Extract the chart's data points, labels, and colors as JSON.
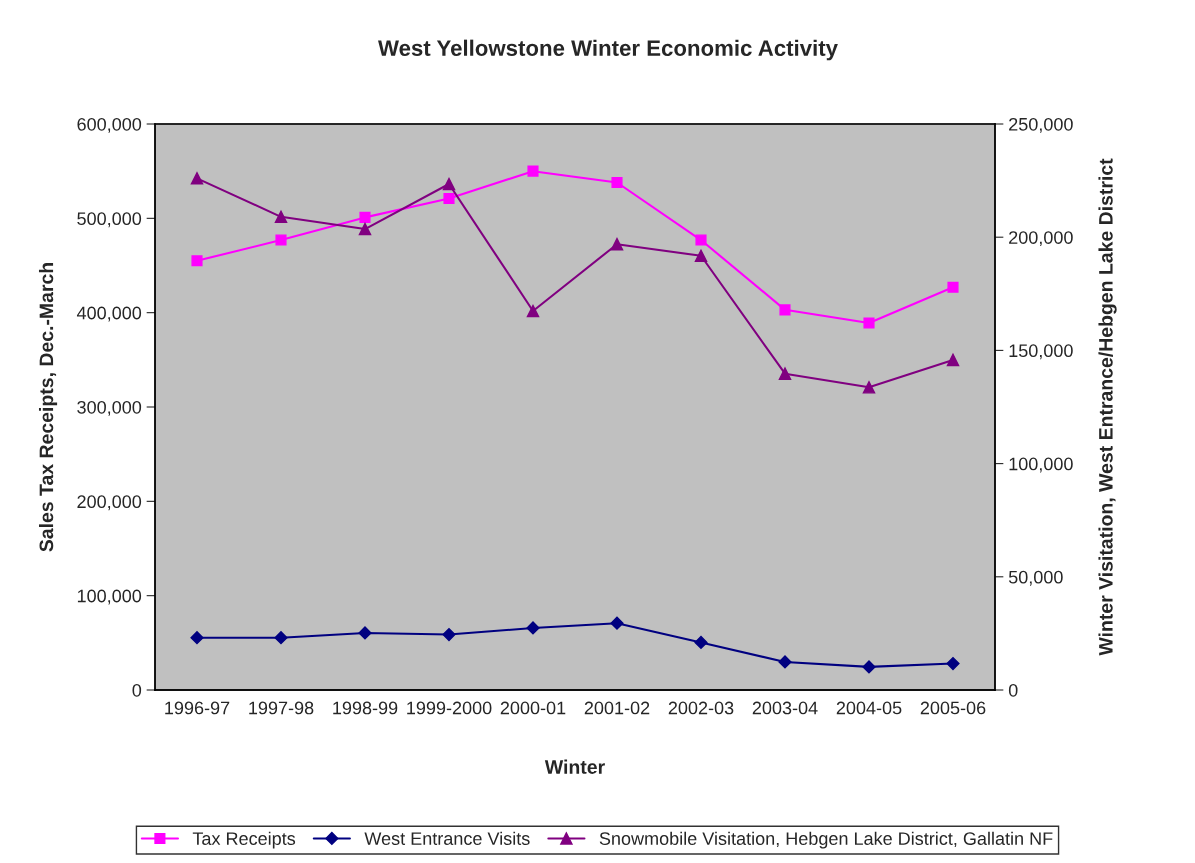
{
  "chart_data": {
    "type": "line",
    "title": "West Yellowstone Winter Economic Activity",
    "xlabel": "Winter",
    "ylabel": "Sales Tax Receipts, Dec.-March",
    "y2label": "Winter Visitation, West Entrance/Hebgen Lake District",
    "categories": [
      "1996-97",
      "1997-98",
      "1998-99",
      "1999-2000",
      "2000-01",
      "2001-02",
      "2002-03",
      "2003-04",
      "2004-05",
      "2005-06"
    ],
    "series": [
      {
        "name": "Tax Receipts",
        "color": "#ff00ff",
        "marker": "square",
        "values": [
          455000,
          477000,
          501000,
          521000,
          550000,
          538000,
          477000,
          403000,
          389000,
          427000
        ]
      },
      {
        "name": "West Entrance Visits",
        "color": "#000080",
        "marker": "diamond",
        "axis": "y2",
        "values": [
          23100,
          23100,
          25200,
          24500,
          27400,
          29500,
          21000,
          12400,
          10200,
          11700
        ]
      },
      {
        "name": "Snowmobile Visitation, Hebgen Lake District, Gallatin NF",
        "color": "#800080",
        "marker": "triangle",
        "axis": "y2",
        "values": [
          226000,
          209000,
          203600,
          223500,
          167400,
          196900,
          191800,
          139700,
          133700,
          145800
        ]
      }
    ],
    "ylim": [
      0,
      600000
    ],
    "yticks": [
      {
        "value": 0,
        "label": "0"
      },
      {
        "value": 100000,
        "label": "100,000"
      },
      {
        "value": 200000,
        "label": "200,000"
      },
      {
        "value": 300000,
        "label": "300,000"
      },
      {
        "value": 400000,
        "label": "400,000"
      },
      {
        "value": 500000,
        "label": "500,000"
      },
      {
        "value": 600000,
        "label": "600,000"
      }
    ],
    "y2lim": [
      0,
      250000
    ],
    "y2ticks": [
      {
        "value": 0,
        "label": "0"
      },
      {
        "value": 50000,
        "label": "50,000"
      },
      {
        "value": 100000,
        "label": "100,000"
      },
      {
        "value": 150000,
        "label": "150,000"
      },
      {
        "value": 200000,
        "label": "200,000"
      },
      {
        "value": 250000,
        "label": "250,000"
      }
    ],
    "grid": false,
    "legend": "bottom"
  }
}
